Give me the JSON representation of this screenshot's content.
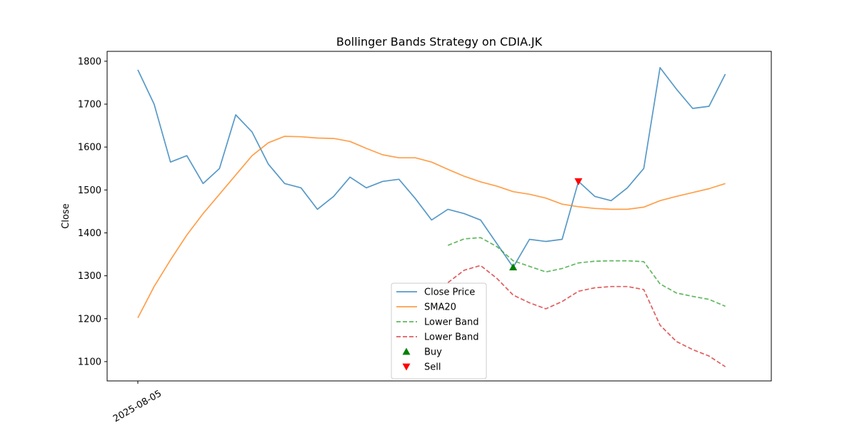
{
  "chart_data": {
    "type": "line",
    "title": "Bollinger Bands Strategy on CDIA.JK",
    "xlabel": "",
    "ylabel": "Close",
    "ylim": [
      1055,
      1823
    ],
    "yticks": [
      1100,
      1200,
      1300,
      1400,
      1500,
      1600,
      1700,
      1800
    ],
    "xticks": [
      {
        "x": 0,
        "label": "2025-08-05"
      }
    ],
    "legend_position": "lower center",
    "grid": false,
    "series": [
      {
        "name": "Close Price",
        "color": "#1f77b4",
        "style": "solid",
        "x": [
          0,
          1,
          2,
          3,
          4,
          5,
          6,
          7,
          8,
          9,
          10,
          11,
          12,
          13,
          14,
          15,
          16,
          17,
          18,
          19,
          20,
          21,
          22,
          23,
          24,
          25,
          26,
          27,
          28,
          29,
          30,
          31,
          32,
          33,
          34,
          35,
          36,
          37
        ],
        "values": [
          1780,
          1700,
          1565,
          1580,
          1515,
          1550,
          1675,
          1635,
          1560,
          1515,
          1505,
          1455,
          1485,
          1530,
          1505,
          1520,
          1525,
          1480,
          1430,
          1455,
          1445,
          1430,
          1375,
          1320,
          1385,
          1380,
          1385,
          1520,
          1485,
          1475,
          1505,
          1550,
          1785,
          1735,
          1690,
          1695,
          1770,
          null
        ]
      },
      {
        "name": "SMA20",
        "color": "#ff7f0e",
        "style": "solid",
        "x": [
          0,
          1,
          2,
          3,
          4,
          5,
          6,
          7,
          8,
          9,
          10,
          11,
          12,
          13,
          14,
          15,
          16,
          17,
          18,
          19,
          20,
          21,
          22,
          23,
          24,
          25,
          26,
          27,
          28,
          29,
          30,
          31,
          32,
          33,
          34,
          35,
          36
        ],
        "values": [
          1202,
          1275,
          1337,
          1395,
          1445,
          1490,
          1535,
          1580,
          1610,
          1625,
          1624,
          1621,
          1620,
          1613,
          1597,
          1582,
          1575,
          1575,
          1565,
          1548,
          1532,
          1519,
          1509,
          1496,
          1490,
          1481,
          1467,
          1461,
          1457,
          1455,
          1455,
          1460,
          1475,
          1485,
          1494,
          1503,
          1515
        ]
      },
      {
        "name": "Lower Band",
        "color": "#2ca02c",
        "style": "dashed",
        "x": [
          19,
          20,
          21,
          22,
          23,
          24,
          25,
          26,
          27,
          28,
          29,
          30,
          31,
          32,
          33,
          34,
          35,
          36
        ],
        "values": [
          1371,
          1386,
          1389,
          1368,
          1335,
          1322,
          1309,
          1317,
          1330,
          1334,
          1335,
          1335,
          1333,
          1281,
          1260,
          1252,
          1245,
          1229
        ]
      },
      {
        "name": "Lower Band",
        "color": "#d62728",
        "style": "dashed",
        "x": [
          19,
          20,
          21,
          22,
          23,
          24,
          25,
          26,
          27,
          28,
          29,
          30,
          31,
          32,
          33,
          34,
          35,
          36
        ],
        "values": [
          1284,
          1313,
          1324,
          1294,
          1255,
          1237,
          1223,
          1240,
          1264,
          1272,
          1275,
          1275,
          1268,
          1185,
          1147,
          1128,
          1113,
          1088
        ]
      }
    ],
    "markers": [
      {
        "name": "Buy",
        "color": "#008000",
        "shape": "triangle-up",
        "points": [
          {
            "x": 23,
            "y": 1320
          }
        ]
      },
      {
        "name": "Sell",
        "color": "#ff0000",
        "shape": "triangle-down",
        "points": [
          {
            "x": 27,
            "y": 1520
          }
        ]
      }
    ]
  }
}
